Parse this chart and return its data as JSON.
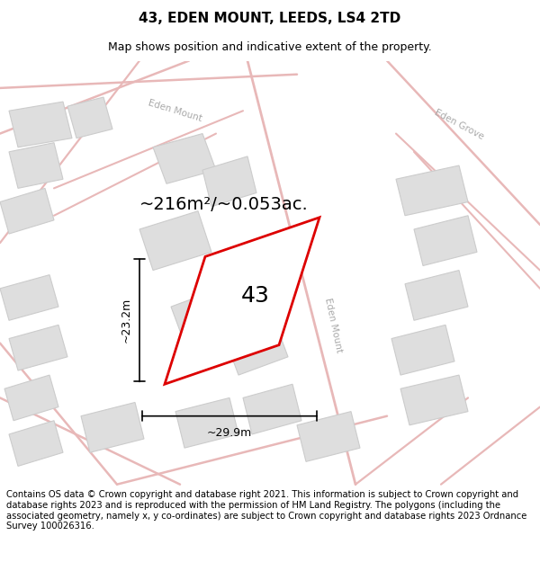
{
  "title": "43, EDEN MOUNT, LEEDS, LS4 2TD",
  "subtitle": "Map shows position and indicative extent of the property.",
  "footer": "Contains OS data © Crown copyright and database right 2021. This information is subject to Crown copyright and database rights 2023 and is reproduced with the permission of HM Land Registry. The polygons (including the associated geometry, namely x, y co-ordinates) are subject to Crown copyright and database rights 2023 Ordnance Survey 100026316.",
  "area_label": "~216m²/~0.053ac.",
  "property_number": "43",
  "dim_width": "~29.9m",
  "dim_height": "~23.2m",
  "map_bg": "#f7f5f5",
  "road_line_color": "#e8b8b8",
  "building_face_color": "#dedede",
  "building_edge_color": "#cccccc",
  "property_outline_color": "#dd0000",
  "street_label_color": "#aaaaaa",
  "title_fontsize": 11,
  "subtitle_fontsize": 9,
  "footer_fontsize": 7.2,
  "area_label_fontsize": 14,
  "property_number_fontsize": 18,
  "dim_fontsize": 9
}
